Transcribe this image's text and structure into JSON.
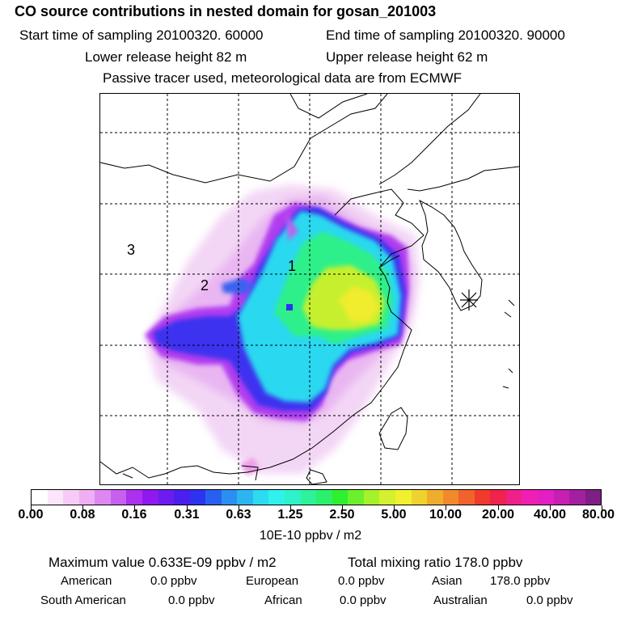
{
  "header": {
    "title": "CO  source contributions in nested domain for gosan_201003",
    "start_time": "Start time of sampling 20100320. 60000",
    "end_time": "End time of sampling 20100320. 90000",
    "lower_height": "Lower release height   82 m",
    "upper_height": "Upper release height   62 m",
    "tracer_note": "Passive tracer used, meteorological data are from ECMWF"
  },
  "map": {
    "labels": [
      "1",
      "2",
      "3"
    ],
    "receptor_marker": "asterisk-icon"
  },
  "colorbar": {
    "tick_labels": [
      "0.00",
      "0.08",
      "0.16",
      "0.31",
      "0.63",
      "1.25",
      "2.50",
      "5.00",
      "10.00",
      "20.00",
      "40.00",
      "80.00"
    ],
    "colors": [
      "#ffffff",
      "#fce6fb",
      "#f6ccf6",
      "#eeb0f3",
      "#dd88f0",
      "#c860ef",
      "#ad2ff0",
      "#8e1aef",
      "#6d1cef",
      "#4a1fef",
      "#2c34f0",
      "#2760f0",
      "#2a8ff0",
      "#2cb6f0",
      "#2ddbf0",
      "#2ff2ec",
      "#2ef2c8",
      "#2ef29a",
      "#2cf06a",
      "#2ff030",
      "#6cf02c",
      "#a6f02c",
      "#d4f02e",
      "#f0f02f",
      "#f0d22e",
      "#f0ad2d",
      "#f08a2c",
      "#f0632c",
      "#f03b2c",
      "#f0224e",
      "#f0208a",
      "#ef1fb3",
      "#e21fc2",
      "#c61fb2",
      "#a41fa0",
      "#7d1f84"
    ],
    "units": "10E-10 ppbv / m2"
  },
  "stats": {
    "max_value": "Maximum value  0.633E-09 ppbv / m2",
    "total_mixing": "Total mixing ratio      178.0 ppbv",
    "american_label": "American",
    "american_value": "0.0 ppbv",
    "european_label": "European",
    "european_value": "0.0 ppbv",
    "asian_label": "Asian",
    "asian_value": "178.0 ppbv",
    "south_american_label": "South American",
    "south_american_value": "0.0 ppbv",
    "african_label": "African",
    "african_value": "0.0 ppbv",
    "australian_label": "Australian",
    "australian_value": "0.0 ppbv"
  }
}
